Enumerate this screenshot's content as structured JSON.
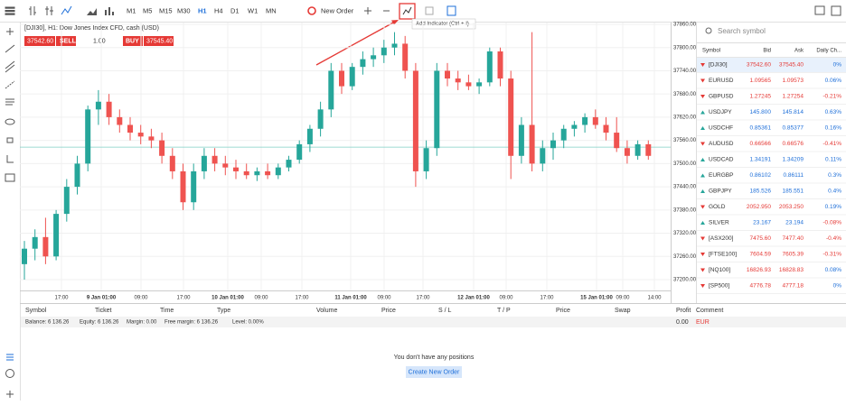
{
  "toolbar": {
    "timeframes": [
      "M1",
      "M5",
      "M15",
      "M30",
      "H1",
      "H4",
      "D1",
      "W1",
      "MN"
    ],
    "active": 4,
    "new_order": "New Order",
    "tooltip": "Add Indicator (Ctrl + I)"
  },
  "chart": {
    "type": "candlestick",
    "title": "[DJI30], H1: Dow Jones Index CFD, cash (USD)",
    "ticket": {
      "sell_price": "37542.60",
      "sell": "SELL",
      "volume": "1.00",
      "buy": "BUY",
      "buy_price": "37545.40"
    },
    "ylim": [
      37200,
      37860
    ],
    "yticks": [
      {
        "value": 37860,
        "label": "37860.00"
      },
      {
        "value": 37800,
        "label": "37800.00"
      },
      {
        "value": 37740,
        "label": "37740.00"
      },
      {
        "value": 37680,
        "label": "37680.00"
      },
      {
        "value": 37620,
        "label": "37620.00"
      },
      {
        "value": 37560,
        "label": "37560.00"
      },
      {
        "value": 37500,
        "label": "37500.00"
      },
      {
        "value": 37440,
        "label": "37440.00"
      },
      {
        "value": 37380,
        "label": "37380.00"
      },
      {
        "value": 37320,
        "label": "37320.00"
      },
      {
        "value": 37260,
        "label": "37260.00"
      },
      {
        "value": 37200,
        "label": "37200.00"
      }
    ],
    "last_price": 37542.6,
    "x_labels": [
      "17:00",
      "9 Jan 01:00",
      "09:00",
      "17:00",
      "10 Jan 01:00",
      "09:00",
      "17:00",
      "11 Jan 01:00",
      "09:00",
      "17:00",
      "12 Jan 01:00",
      "09:00",
      "17:00",
      "15 Jan 01:00",
      "09:00",
      "14:00"
    ],
    "colors": {
      "up": "#26a69a",
      "down": "#ef5350"
    },
    "candles": [
      [
        37240,
        37300,
        37200,
        37280
      ],
      [
        37280,
        37330,
        37250,
        37310
      ],
      [
        37310,
        37360,
        37240,
        37260
      ],
      [
        37260,
        37380,
        37250,
        37370
      ],
      [
        37370,
        37460,
        37350,
        37440
      ],
      [
        37440,
        37520,
        37420,
        37500
      ],
      [
        37500,
        37650,
        37480,
        37640
      ],
      [
        37640,
        37690,
        37600,
        37660
      ],
      [
        37660,
        37680,
        37600,
        37620
      ],
      [
        37620,
        37640,
        37580,
        37600
      ],
      [
        37600,
        37620,
        37560,
        37580
      ],
      [
        37580,
        37600,
        37550,
        37570
      ],
      [
        37570,
        37590,
        37540,
        37560
      ],
      [
        37560,
        37580,
        37500,
        37520
      ],
      [
        37520,
        37540,
        37460,
        37480
      ],
      [
        37480,
        37500,
        37380,
        37400
      ],
      [
        37400,
        37500,
        37380,
        37480
      ],
      [
        37480,
        37540,
        37460,
        37520
      ],
      [
        37520,
        37540,
        37480,
        37500
      ],
      [
        37500,
        37520,
        37470,
        37490
      ],
      [
        37490,
        37510,
        37460,
        37480
      ],
      [
        37480,
        37500,
        37460,
        37470
      ],
      [
        37470,
        37490,
        37455,
        37480
      ],
      [
        37480,
        37500,
        37460,
        37470
      ],
      [
        37470,
        37500,
        37460,
        37490
      ],
      [
        37490,
        37520,
        37480,
        37510
      ],
      [
        37510,
        37560,
        37500,
        37550
      ],
      [
        37550,
        37600,
        37530,
        37590
      ],
      [
        37590,
        37660,
        37570,
        37640
      ],
      [
        37640,
        37760,
        37620,
        37740
      ],
      [
        37740,
        37760,
        37680,
        37700
      ],
      [
        37700,
        37760,
        37690,
        37750
      ],
      [
        37750,
        37790,
        37730,
        37770
      ],
      [
        37770,
        37800,
        37750,
        37780
      ],
      [
        37780,
        37820,
        37760,
        37800
      ],
      [
        37800,
        37840,
        37780,
        37810
      ],
      [
        37810,
        37830,
        37720,
        37740
      ],
      [
        37740,
        37760,
        37440,
        37480
      ],
      [
        37480,
        37560,
        37460,
        37540
      ],
      [
        37540,
        37760,
        37520,
        37740
      ],
      [
        37740,
        37760,
        37700,
        37720
      ],
      [
        37720,
        37740,
        37690,
        37710
      ],
      [
        37710,
        37730,
        37690,
        37700
      ],
      [
        37700,
        37720,
        37680,
        37710
      ],
      [
        37710,
        37800,
        37700,
        37790
      ],
      [
        37790,
        37800,
        37700,
        37720
      ],
      [
        37720,
        37740,
        37460,
        37520
      ],
      [
        37520,
        37620,
        37500,
        37600
      ],
      [
        37600,
        37840,
        37480,
        37500
      ],
      [
        37500,
        37560,
        37480,
        37540
      ],
      [
        37540,
        37580,
        37510,
        37560
      ],
      [
        37560,
        37600,
        37540,
        37590
      ],
      [
        37590,
        37610,
        37570,
        37600
      ],
      [
        37600,
        37630,
        37580,
        37620
      ],
      [
        37620,
        37640,
        37590,
        37600
      ],
      [
        37600,
        37620,
        37560,
        37580
      ],
      [
        37580,
        37620,
        37530,
        37540
      ],
      [
        37540,
        37560,
        37500,
        37520
      ],
      [
        37520,
        37560,
        37510,
        37550
      ],
      [
        37550,
        37560,
        37510,
        37520
      ]
    ]
  },
  "watchlist": {
    "search": "Search symbol",
    "columns": [
      "Symbol",
      "Bid",
      "Ask",
      "Daily Ch..."
    ],
    "rows": [
      {
        "symbol": "[DJI30]",
        "bid": "37542.60",
        "ask": "37545.40",
        "change": "0%",
        "dir": "down"
      },
      {
        "symbol": "EURUSD",
        "bid": "1.09565",
        "ask": "1.09573",
        "change": "0.06%",
        "dir": "down"
      },
      {
        "symbol": "GBPUSD",
        "bid": "1.27245",
        "ask": "1.27254",
        "change": "-0.21%",
        "dir": "down"
      },
      {
        "symbol": "USDJPY",
        "bid": "145.800",
        "ask": "145.814",
        "change": "0.63%",
        "dir": "up"
      },
      {
        "symbol": "USDCHF",
        "bid": "0.85361",
        "ask": "0.85377",
        "change": "0.16%",
        "dir": "up"
      },
      {
        "symbol": "AUDUSD",
        "bid": "0.66566",
        "ask": "0.66576",
        "change": "-0.41%",
        "dir": "down"
      },
      {
        "symbol": "USDCAD",
        "bid": "1.34191",
        "ask": "1.34209",
        "change": "0.11%",
        "dir": "up"
      },
      {
        "symbol": "EURGBP",
        "bid": "0.86102",
        "ask": "0.86111",
        "change": "0.3%",
        "dir": "up"
      },
      {
        "symbol": "GBPJPY",
        "bid": "185.526",
        "ask": "185.551",
        "change": "0.4%",
        "dir": "up"
      },
      {
        "symbol": "GOLD",
        "bid": "2052.950",
        "ask": "2053.250",
        "change": "0.19%",
        "dir": "down"
      },
      {
        "symbol": "SILVER",
        "bid": "23.167",
        "ask": "23.194",
        "change": "-0.08%",
        "dir": "up"
      },
      {
        "symbol": "[ASX200]",
        "bid": "7475.60",
        "ask": "7477.40",
        "change": "-0.4%",
        "dir": "down"
      },
      {
        "symbol": "[FTSE100]",
        "bid": "7604.59",
        "ask": "7605.39",
        "change": "-0.31%",
        "dir": "down"
      },
      {
        "symbol": "[NQ100]",
        "bid": "16826.93",
        "ask": "16828.83",
        "change": "0.08%",
        "dir": "down"
      },
      {
        "symbol": "[SP500]",
        "bid": "4776.78",
        "ask": "4777.18",
        "change": "0%",
        "dir": "down"
      }
    ]
  },
  "positions": {
    "columns": [
      "Symbol",
      "Ticket",
      "Time",
      "Type",
      "Volume",
      "Price",
      "S / L",
      "T / P",
      "Price",
      "Swap",
      "Profit",
      "Comment"
    ],
    "balance": [
      "Balance: 6 136.26",
      "Equity: 6 136.26",
      "Margin: 0.00",
      "Free margin: 6 136.26",
      "Level: 0.00%"
    ],
    "total_profit": "0.00",
    "currency": "EUR",
    "empty": "You don't have any positions",
    "button": "Create New Order"
  }
}
